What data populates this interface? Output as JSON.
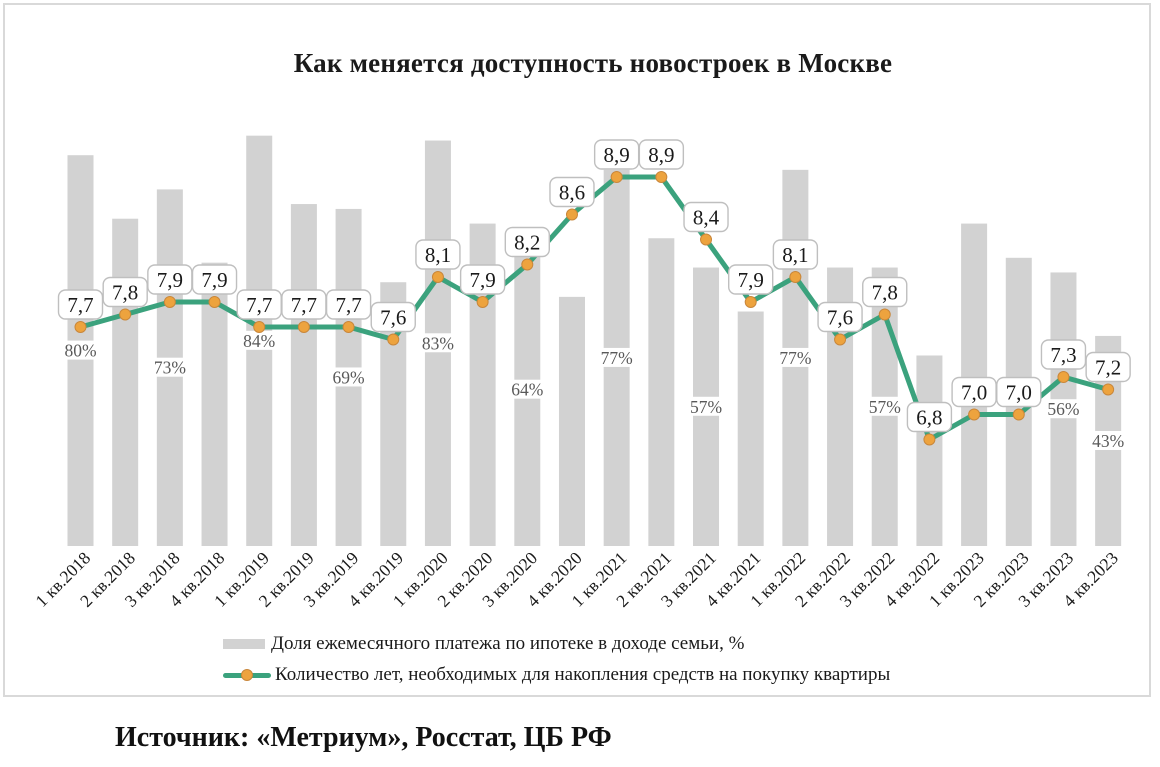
{
  "title": "Как меняется доступность новостроек в Москве",
  "source": "Источник: «Метриум», Росстат, ЦБ РФ",
  "legend": {
    "bar_label": "Доля ежемесячного платежа по ипотеке в доходе семьи, %",
    "line_label": "Количество лет, необходимых для накопления средств на покупку квартиры"
  },
  "colors": {
    "bar": "#d2d2d2",
    "line": "#3ba27d",
    "marker_fill": "#eda33e",
    "marker_edge": "#c9873b",
    "callout_border": "#bfbfbf",
    "callout_text": "#1a1a1a",
    "pct_text": "#595959",
    "axis_text": "#1a1a1a",
    "frame": "#d9d9d9"
  },
  "chart_data": {
    "type": "bar",
    "subtype": "bar-and-line combo",
    "title": "Как меняется доступность новостроек в Москве",
    "xlabel": "",
    "ylabel": "",
    "grid": false,
    "legend_position": "bottom",
    "categories": [
      "1 кв.2018",
      "2 кв.2018",
      "3 кв.2018",
      "4 кв.2018",
      "1 кв.2019",
      "2 кв.2019",
      "3 кв.2019",
      "4 кв.2019",
      "1 кв.2020",
      "2 кв.2020",
      "3 кв.2020",
      "4 кв.2020",
      "1 кв.2021",
      "2 кв.2021",
      "3 кв.2021",
      "4 кв.2021",
      "1 кв.2022",
      "2 кв.2022",
      "3 кв.2022",
      "4 кв.2022",
      "1 кв.2023",
      "2 кв.2023",
      "3 кв.2023",
      "4 кв.2023"
    ],
    "series": [
      {
        "name": "Доля ежемесячного платежа по ипотеке в доходе семьи, %",
        "type": "bar",
        "unit": "%",
        "values": [
          80,
          67,
          73,
          58,
          84,
          70,
          69,
          54,
          83,
          66,
          64,
          51,
          77,
          63,
          57,
          48,
          77,
          57,
          57,
          39,
          66,
          59,
          56,
          43
        ],
        "visible_point_labels": [
          "80%",
          "",
          "73%",
          "",
          "84%",
          "",
          "69%",
          "",
          "83%",
          "",
          "64%",
          "",
          "77%",
          "",
          "57%",
          "",
          "77%",
          "",
          "57%",
          "",
          "",
          "",
          "56%",
          "43%"
        ],
        "ylim": [
          0,
          100
        ]
      },
      {
        "name": "Количество лет, необходимых для накопления средств на покупку квартиры",
        "type": "line",
        "unit": "лет",
        "values": [
          7.7,
          7.8,
          7.9,
          7.9,
          7.7,
          7.7,
          7.7,
          7.6,
          8.1,
          7.9,
          8.2,
          8.6,
          8.9,
          8.9,
          8.4,
          7.9,
          8.1,
          7.6,
          7.8,
          6.8,
          7.0,
          7.0,
          7.3,
          7.2
        ],
        "visible_point_labels": [
          "7,7",
          "7,8",
          "7,9",
          "7,9",
          "7,7",
          "7,7",
          "7,7",
          "7,6",
          "8,1",
          "7,9",
          "8,2",
          "8,6",
          "8,9",
          "8,9",
          "8,4",
          "7,9",
          "8,1",
          "7,6",
          "7,8",
          "6,8",
          "7,0",
          "7,0",
          "7,3",
          "7,2"
        ]
      }
    ]
  }
}
